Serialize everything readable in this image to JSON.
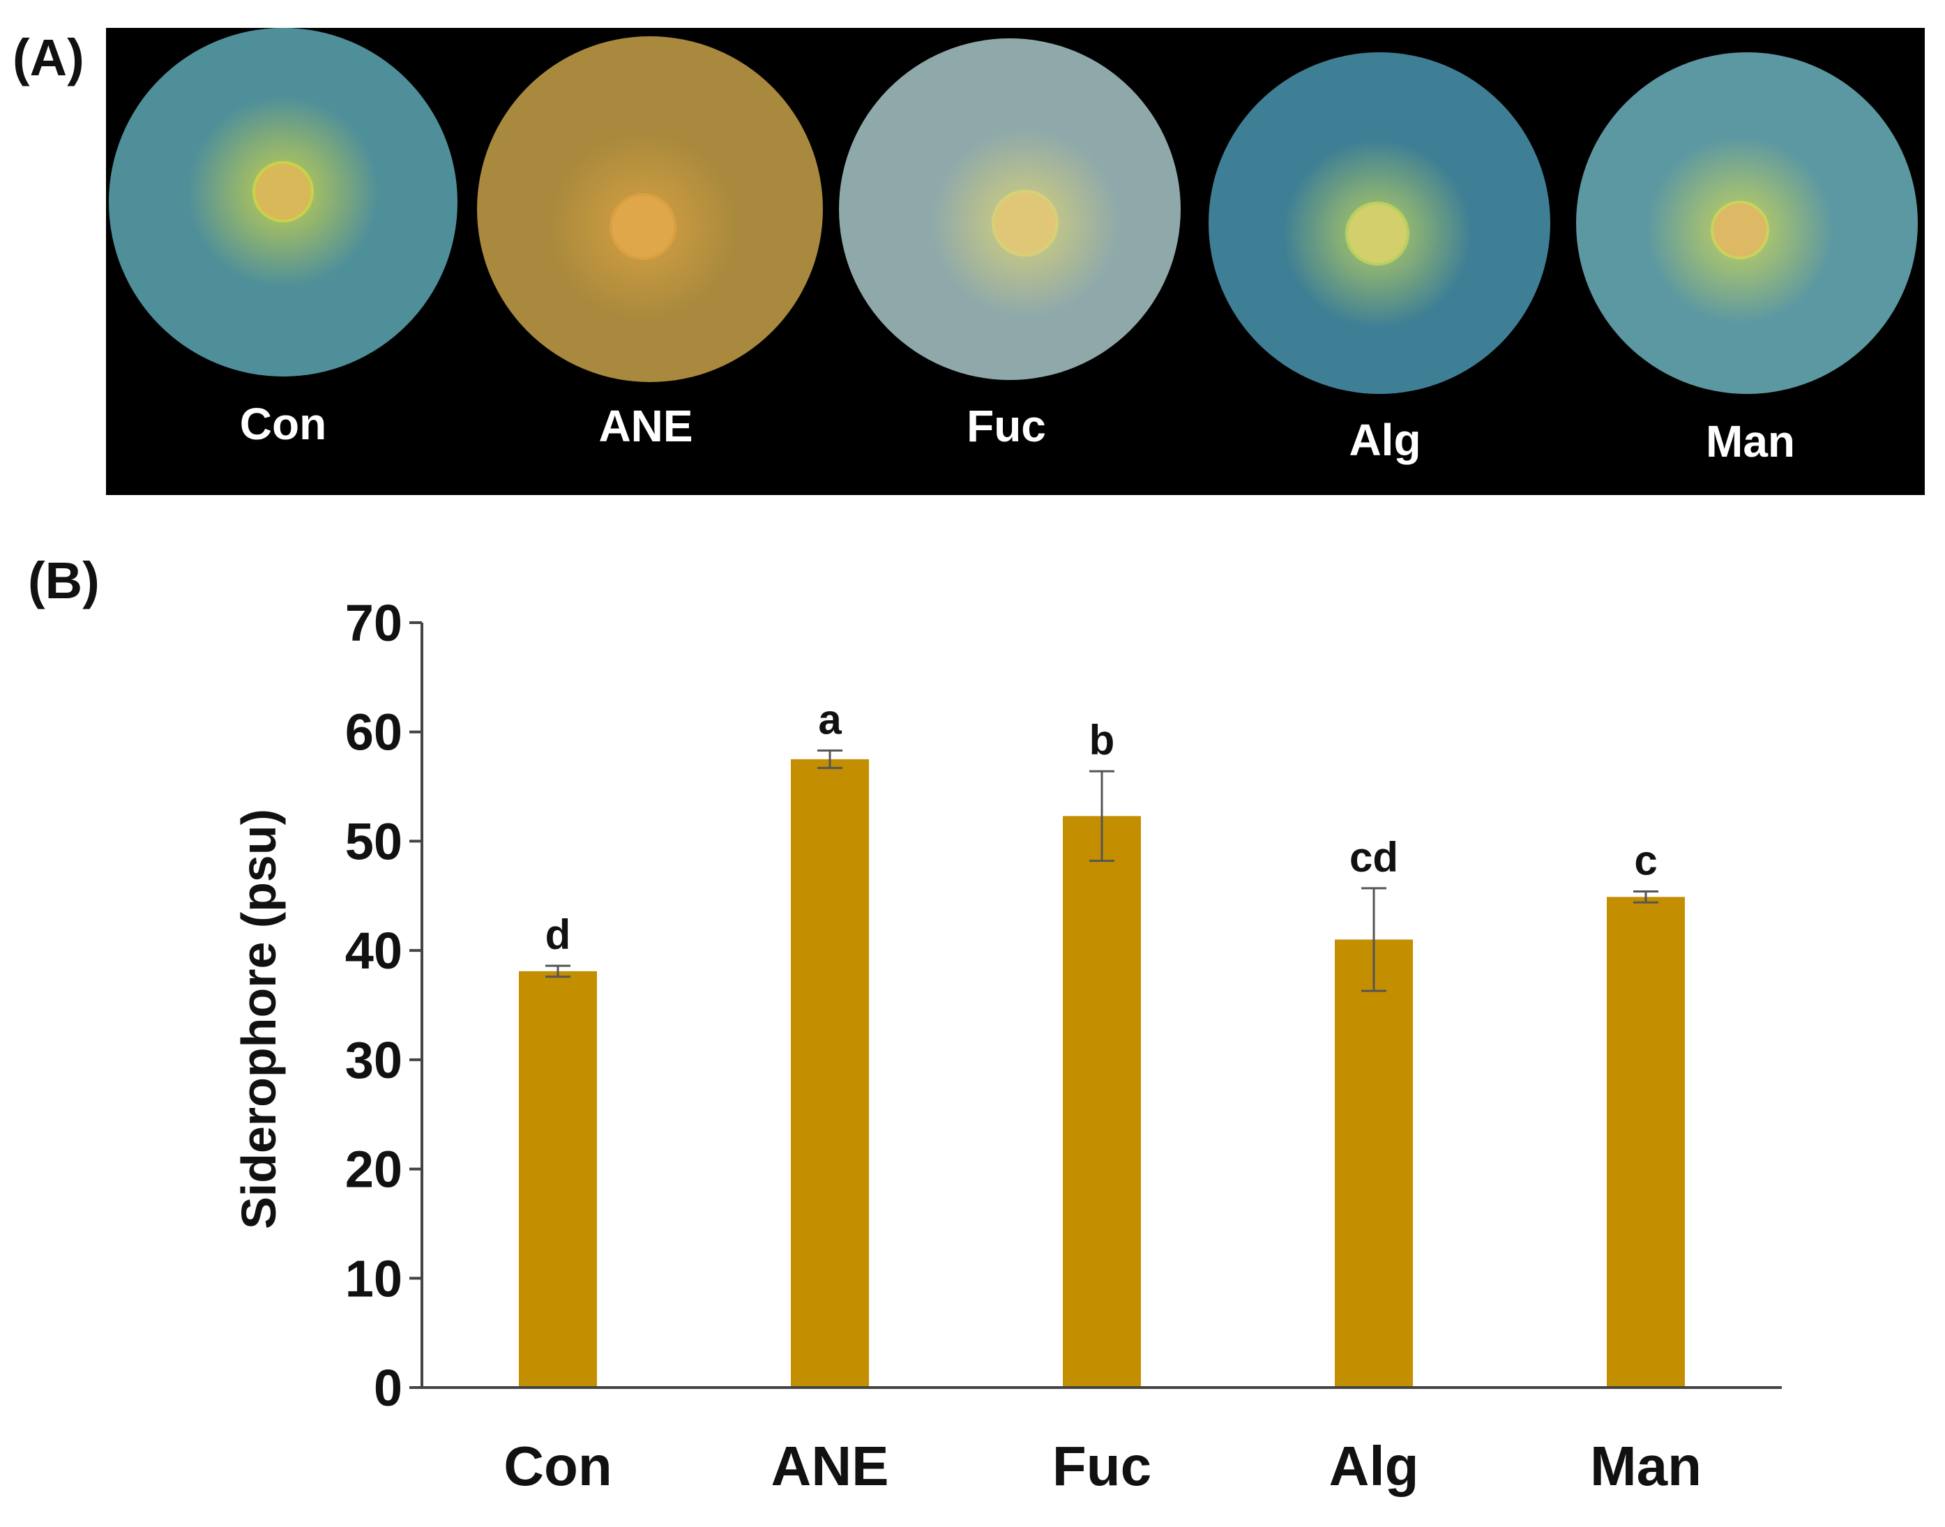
{
  "panel_a": {
    "label": "(A)",
    "plates": [
      {
        "name": "Con",
        "medium_color": "#4f8f9a",
        "halo_color": "#c8d24a",
        "colony_color": "#d9b85a"
      },
      {
        "name": "ANE",
        "medium_color": "#a8893d",
        "halo_color": "#d7a142",
        "colony_color": "#e0a64a"
      },
      {
        "name": "Fuc",
        "medium_color": "#8fa9ab",
        "halo_color": "#d6d178",
        "colony_color": "#e0c778"
      },
      {
        "name": "Alg",
        "medium_color": "#3f7f95",
        "halo_color": "#b8d060",
        "colony_color": "#d2cf6c"
      },
      {
        "name": "Man",
        "medium_color": "#5c98a2",
        "halo_color": "#c8d45a",
        "colony_color": "#ddb966"
      }
    ]
  },
  "panel_b": {
    "label": "(B)",
    "bar_color": "#c38f00"
  },
  "chart_data": {
    "type": "bar",
    "title": "",
    "xlabel": "",
    "ylabel": "Siderophore (psu)",
    "categories": [
      "Con",
      "ANE",
      "Fuc",
      "Alg",
      "Man"
    ],
    "values": [
      38.1,
      57.5,
      52.3,
      41.0,
      44.9
    ],
    "errors": [
      0.5,
      0.8,
      4.1,
      4.7,
      0.5
    ],
    "significance": [
      "d",
      "a",
      "b",
      "cd",
      "c"
    ],
    "ylim": [
      0,
      70
    ],
    "yticks": [
      0,
      10,
      20,
      30,
      40,
      50,
      60,
      70
    ],
    "grid": false
  }
}
